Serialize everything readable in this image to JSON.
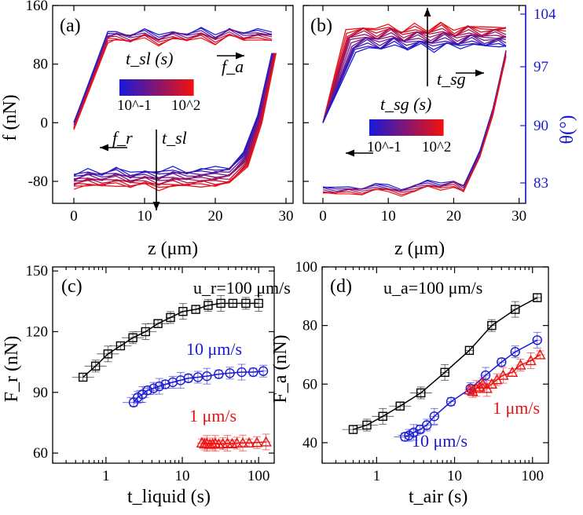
{
  "chart_data": [
    {
      "panel": "(a)",
      "type": "line",
      "xlabel": "z (μm)",
      "ylabel": "f (nN)",
      "xlim": [
        -3,
        31
      ],
      "ylim": [
        -110,
        160
      ],
      "xticks": [
        "0",
        "10",
        "20",
        "30"
      ],
      "yticks": [
        "160",
        "80",
        "0",
        "-80"
      ],
      "annotations": {
        "fa": "f_a",
        "fr": "f_r",
        "tsl": "t_sl"
      },
      "colorbar": {
        "label": "t_sl (s)",
        "min": "10^-1",
        "max": "10^2"
      },
      "series_count": 14,
      "advancing": {
        "x": [
          0,
          4.8,
          6,
          8,
          10,
          12,
          14,
          16,
          18,
          20,
          22,
          24,
          26,
          28
        ],
        "y": [
          0,
          122,
          125,
          120,
          127,
          118,
          126,
          121,
          128,
          119,
          130,
          122,
          126,
          124
        ]
      },
      "receding_blue": {
        "x": [
          0,
          2,
          4,
          6,
          8,
          10,
          12,
          14,
          16,
          18,
          20,
          22,
          24,
          26,
          28
        ],
        "y": [
          -72,
          -65,
          -68,
          -62,
          -70,
          -64,
          -68,
          -62,
          -66,
          -64,
          -62,
          -60,
          -40,
          10,
          95
        ]
      },
      "receding_red": {
        "x": [
          0,
          2,
          4,
          6,
          8,
          10,
          12,
          14,
          16,
          18,
          20,
          22,
          24,
          26,
          28
        ],
        "y": [
          -88,
          -85,
          -88,
          -84,
          -87,
          -85,
          -90,
          -86,
          -88,
          -85,
          -86,
          -84,
          -60,
          0,
          95
        ]
      }
    },
    {
      "panel": "(b)",
      "type": "line",
      "xlabel": "z (μm)",
      "ylabel_right": "θ(°)",
      "xlim": [
        -3,
        31
      ],
      "ylim": [
        -110,
        160
      ],
      "xticks": [
        "0",
        "10",
        "20",
        "30"
      ],
      "yticks_right": [
        "104",
        "97",
        "90",
        "83"
      ],
      "annotations": {
        "tsg": "t_sg"
      },
      "colorbar": {
        "label": "t_sg (s)",
        "min": "10^-1",
        "max": "10^2"
      },
      "series_count": 14,
      "advancing_red": {
        "x": [
          0,
          3.5,
          6,
          8,
          10,
          12,
          14,
          16,
          18,
          20,
          22,
          24,
          26,
          28
        ],
        "y": [
          0,
          125,
          132,
          126,
          135,
          124,
          133,
          127,
          136,
          125,
          134,
          128,
          132,
          130
        ]
      },
      "advancing_blue": {
        "x": [
          0,
          5,
          7,
          9,
          11,
          13,
          15,
          17,
          19,
          21,
          23,
          25,
          27,
          28
        ],
        "y": [
          0,
          95,
          105,
          98,
          108,
          100,
          106,
          99,
          107,
          101,
          109,
          102,
          106,
          104
        ]
      },
      "receding": {
        "x": [
          0,
          2,
          4,
          6,
          8,
          10,
          12,
          14,
          16,
          18,
          20,
          21.5,
          24,
          26,
          28
        ],
        "y": [
          -88,
          -90,
          -87,
          -89,
          -84,
          -86,
          -90,
          -85,
          -80,
          -83,
          -78,
          -86,
          -40,
          20,
          100
        ]
      }
    },
    {
      "panel": "(c)",
      "type": "scatter",
      "xlabel": "t_liquid (s)",
      "ylabel": "F_r (nN)",
      "xscale": "log",
      "xlim": [
        0.2,
        160
      ],
      "ylim": [
        55,
        152
      ],
      "xticks": [
        "1",
        "10",
        "100"
      ],
      "yticks": [
        "60",
        "90",
        "120",
        "150"
      ],
      "series": [
        {
          "name": "u_r=100 μm/s",
          "marker": "square",
          "color": "#000000",
          "x": [
            0.5,
            0.73,
            1.06,
            1.55,
            2.25,
            3.3,
            4.8,
            7.0,
            10.2,
            15,
            21.8,
            32,
            46,
            68,
            100
          ],
          "y": [
            97.5,
            103,
            109,
            113,
            117,
            120,
            124,
            127,
            130,
            131,
            133,
            134,
            134,
            134,
            134
          ]
        },
        {
          "name": "10 μm/s",
          "marker": "circle",
          "color": "#1a1ad6",
          "x": [
            2.3,
            2.6,
            3.0,
            3.5,
            4.2,
            5.0,
            6.0,
            7.5,
            9.5,
            12,
            16,
            21,
            30,
            42,
            60,
            85,
            115
          ],
          "y": [
            85,
            87.5,
            89,
            91,
            92,
            93,
            94,
            95,
            96,
            97,
            97.5,
            98,
            99,
            99.5,
            100,
            100,
            100.5
          ]
        },
        {
          "name": "1 μm/s",
          "marker": "triangle",
          "color": "#ee1111",
          "x": [
            18,
            19.5,
            21,
            23,
            25,
            27,
            30,
            34,
            39,
            45,
            52,
            62,
            75,
            95,
            125
          ],
          "y": [
            65,
            64.5,
            64.8,
            64.3,
            64.5,
            64.8,
            64.4,
            64.6,
            64.8,
            64.6,
            64.9,
            65,
            65,
            65.2,
            65.5
          ]
        }
      ]
    },
    {
      "panel": "(d)",
      "type": "scatter",
      "xlabel": "t_air (s)",
      "ylabel": "F_a (nN)",
      "xscale": "log",
      "xlim": [
        0.2,
        160
      ],
      "ylim": [
        33,
        100
      ],
      "xticks": [
        "1",
        "10",
        "100"
      ],
      "yticks": [
        "40",
        "60",
        "80",
        "100"
      ],
      "series": [
        {
          "name": "u_a=100 μm/s",
          "marker": "square",
          "color": "#000000",
          "x": [
            0.5,
            0.75,
            1.2,
            2.0,
            3.7,
            7.5,
            15.5,
            30,
            60,
            115
          ],
          "y": [
            44.5,
            46,
            49,
            52.5,
            57,
            64,
            71.5,
            80,
            85.5,
            89.5
          ]
        },
        {
          "name": "10 μm/s",
          "marker": "circle",
          "color": "#1a1ad6",
          "x": [
            2.3,
            2.6,
            3.0,
            3.6,
            4.4,
            5.5,
            9.0,
            16,
            25,
            40,
            60,
            115
          ],
          "y": [
            42,
            42.5,
            43.5,
            44.5,
            46,
            49,
            54,
            58.5,
            63,
            67.5,
            71,
            75
          ]
        },
        {
          "name": "1 μm/s",
          "marker": "triangle",
          "color": "#ee1111",
          "x": [
            15.5,
            17,
            19,
            21,
            23,
            26,
            30,
            35,
            42,
            55,
            70,
            95,
            125
          ],
          "y": [
            58,
            57.5,
            58.5,
            59,
            60,
            58.5,
            60,
            61.5,
            63,
            64,
            66.5,
            68,
            70
          ]
        }
      ]
    }
  ]
}
